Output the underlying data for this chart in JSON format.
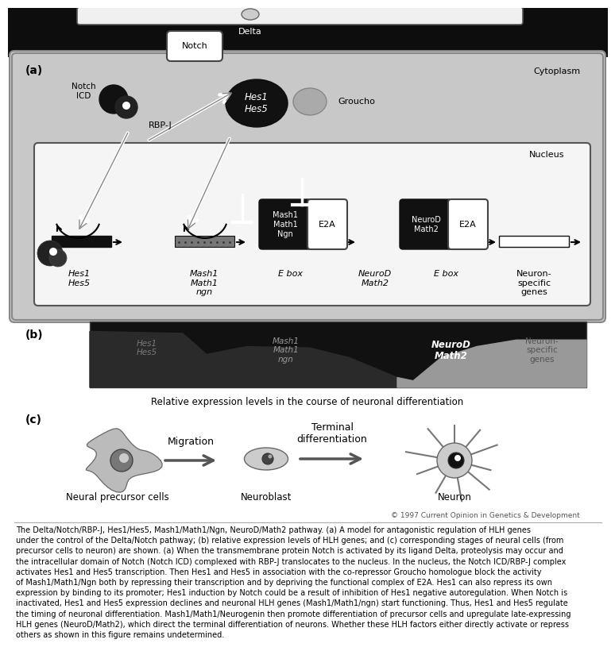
{
  "bg_color": "#ffffff",
  "figure_width": 7.55,
  "figure_height": 7.52,
  "caption_text": "The Delta/Notch/RBP-J, Hes1/Hes5, Mash1/Math1/Ngn, NeuroD/Math2 pathway. (a) A model for antagonistic regulation of HLH genes\nunder the control of the Delta/Notch pathway; (b) relative expression levels of HLH genes; and (c) corresponding stages of neural cells (from\nprecursor cells to neuron) are shown. (a) When the transmembrane protein Notch is activated by its ligand Delta, proteolysis may occur and\nthe intracellular domain of Notch (Notch ICD) complexed with RBP-J translocates to the nucleus. In the nucleus, the Notch ICD/RBP-J complex\nactivates Hes1 and Hes5 transcription. Then Hes1 and Hes5 in association with the co-repressor Groucho homologue block the activity\nof Mash1/Math1/Ngn both by repressing their transcription and by depriving the functional complex of E2A. Hes1 can also repress its own\nexpression by binding to its promoter; Hes1 induction by Notch could be a result of inhibition of Hes1 negative autoregulation. When Notch is\ninactivated, Hes1 and Hes5 expression declines and neuronal HLH genes (Mash1/Math1/ngn) start functioning. Thus, Hes1 and Hes5 regulate\nthe timing of neuronal differentiation. Mash1/Math1/Neurogenin then promote differentiation of precursor cells and upregulate late-expressing\nHLH genes (NeuroD/Math2), which direct the terminal differentiation of neurons. Whether these HLH factors either directly activate or repress\nothers as shown in this figure remains undetermined.",
  "copyright": "© 1997 Current Opinion in Genetics & Development"
}
